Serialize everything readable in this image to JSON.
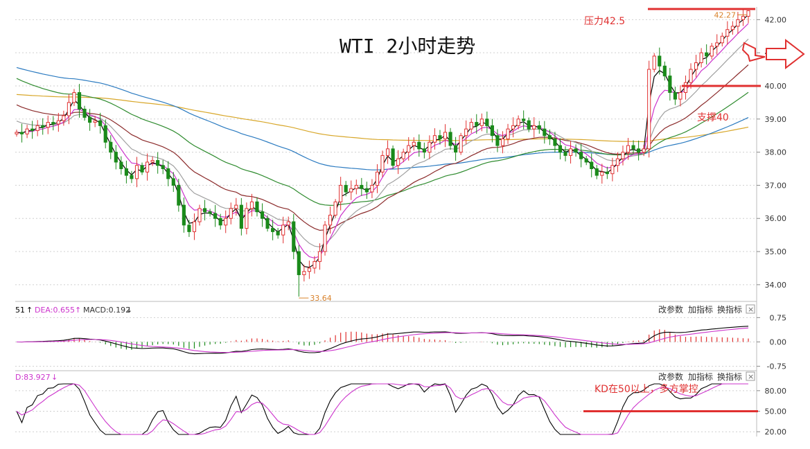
{
  "colors": {
    "up": "#e03030",
    "down": "#1a8a1a",
    "annotation": "#e03030",
    "ma_black": "#000000",
    "ma_magenta": "#cc33cc",
    "ma_gray": "#a0a0a0",
    "ma_darkred": "#8b2a2a",
    "ma_green": "#2e8b2e",
    "ma_blue": "#2a7ac0",
    "ma_gold": "#d8a72a",
    "low_label": "#d9822b"
  },
  "chart_data": [
    {
      "type": "candlestick",
      "title": "WTI 2小时走势",
      "ylim": [
        33.6,
        42.3
      ],
      "yticks": [
        "42.00",
        "41.00",
        "40.00",
        "39.00",
        "38.00",
        "37.00",
        "36.00",
        "35.00",
        "34.00"
      ],
      "ytick_values": [
        42,
        41,
        40,
        39,
        38,
        37,
        36,
        35,
        34
      ],
      "low_marker": {
        "label": "33.64",
        "value": 33.64
      },
      "high_marker": {
        "label": "42.27",
        "value": 42.27
      },
      "annotations": [
        {
          "text": "压力42.5",
          "level": 42.32
        },
        {
          "text": "支撑40",
          "level": 40.0
        }
      ],
      "closes": [
        38.6,
        38.55,
        38.7,
        38.65,
        38.8,
        38.75,
        38.9,
        38.85,
        38.95,
        39.1,
        39.5,
        39.8,
        39.3,
        39.05,
        38.9,
        38.95,
        38.8,
        38.3,
        38.0,
        37.7,
        37.5,
        37.3,
        37.2,
        37.6,
        37.4,
        37.7,
        37.75,
        37.6,
        37.5,
        37.2,
        37.0,
        36.4,
        35.8,
        35.6,
        35.9,
        36.3,
        36.2,
        36.15,
        36.0,
        35.8,
        36.0,
        36.3,
        36.4,
        35.7,
        36.3,
        36.5,
        36.2,
        36.0,
        35.7,
        35.6,
        35.5,
        35.8,
        35.9,
        35.0,
        34.3,
        34.4,
        34.5,
        34.7,
        35.0,
        35.8,
        36.1,
        36.5,
        37.0,
        36.8,
        36.9,
        37.0,
        36.9,
        36.8,
        37.0,
        37.4,
        37.9,
        38.1,
        37.6,
        37.8,
        38.0,
        38.2,
        38.3,
        38.1,
        38.0,
        38.3,
        38.5,
        38.4,
        38.6,
        38.2,
        38.0,
        38.5,
        38.7,
        38.9,
        38.8,
        39.0,
        38.8,
        38.5,
        38.2,
        38.4,
        38.7,
        38.8,
        39.0,
        38.95,
        38.7,
        38.8,
        38.7,
        38.5,
        38.4,
        38.2,
        38.0,
        37.9,
        38.1,
        38.0,
        37.8,
        37.7,
        37.5,
        37.3,
        37.4,
        37.35,
        37.6,
        37.8,
        38.0,
        38.2,
        38.1,
        38.0,
        38.1,
        40.5,
        40.9,
        40.6,
        40.3,
        39.8,
        39.6,
        39.8,
        40.1,
        40.5,
        40.7,
        41.0,
        40.9,
        41.2,
        41.3,
        41.5,
        41.7,
        41.8,
        42.0,
        42.1,
        42.27
      ]
    },
    {
      "type": "line",
      "indicator": "MACD",
      "legend": {
        "prefix": "51",
        "dea": "DEA:0.655",
        "macd": "MACD:0.192"
      },
      "ylim": [
        -0.78,
        0.8
      ],
      "yticks": [
        "0.75",
        "0.00",
        "-0.75"
      ],
      "ytick_values": [
        0.75,
        0.0,
        -0.75
      ]
    },
    {
      "type": "line",
      "indicator": "KD",
      "legend": {
        "d": "D:83.927"
      },
      "ylim": [
        15,
        92
      ],
      "yticks": [
        "80.00",
        "50.00",
        "20.00"
      ],
      "ytick_values": [
        80,
        50,
        20
      ],
      "annotation": {
        "text": "KD在50以上，多方掌控",
        "level": 50
      }
    }
  ],
  "panel_buttons": {
    "params": "改参数",
    "add": "加指标",
    "switch": "换指标",
    "close": "×"
  }
}
